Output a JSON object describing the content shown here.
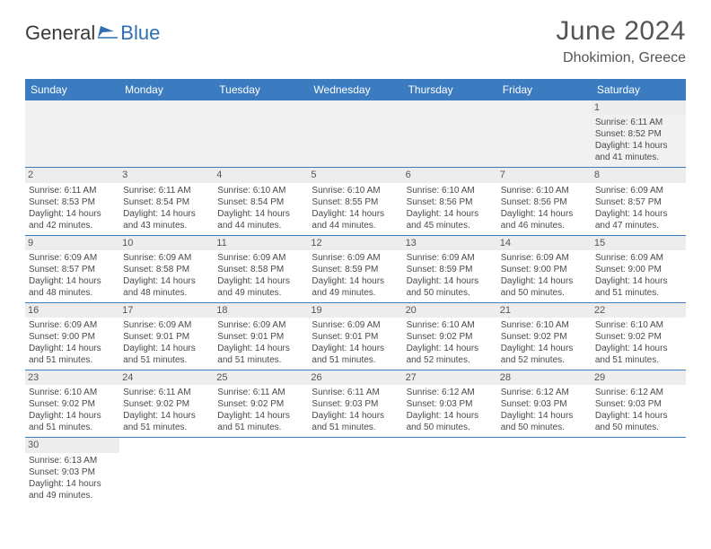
{
  "brand": {
    "part1": "General",
    "part2": "Blue"
  },
  "title": "June 2024",
  "location": "Dhokimion, Greece",
  "colors": {
    "header_bg": "#3b7cc0",
    "header_text": "#ffffff",
    "daynum_bg": "#ededed",
    "rule": "#3b7cc0",
    "text": "#4a4a4a",
    "brand_blue": "#2f6fb0"
  },
  "weekdays": [
    "Sunday",
    "Monday",
    "Tuesday",
    "Wednesday",
    "Thursday",
    "Friday",
    "Saturday"
  ],
  "weeks": [
    [
      null,
      null,
      null,
      null,
      null,
      null,
      {
        "n": "1",
        "sr": "Sunrise: 6:11 AM",
        "ss": "Sunset: 8:52 PM",
        "d1": "Daylight: 14 hours",
        "d2": "and 41 minutes."
      }
    ],
    [
      {
        "n": "2",
        "sr": "Sunrise: 6:11 AM",
        "ss": "Sunset: 8:53 PM",
        "d1": "Daylight: 14 hours",
        "d2": "and 42 minutes."
      },
      {
        "n": "3",
        "sr": "Sunrise: 6:11 AM",
        "ss": "Sunset: 8:54 PM",
        "d1": "Daylight: 14 hours",
        "d2": "and 43 minutes."
      },
      {
        "n": "4",
        "sr": "Sunrise: 6:10 AM",
        "ss": "Sunset: 8:54 PM",
        "d1": "Daylight: 14 hours",
        "d2": "and 44 minutes."
      },
      {
        "n": "5",
        "sr": "Sunrise: 6:10 AM",
        "ss": "Sunset: 8:55 PM",
        "d1": "Daylight: 14 hours",
        "d2": "and 44 minutes."
      },
      {
        "n": "6",
        "sr": "Sunrise: 6:10 AM",
        "ss": "Sunset: 8:56 PM",
        "d1": "Daylight: 14 hours",
        "d2": "and 45 minutes."
      },
      {
        "n": "7",
        "sr": "Sunrise: 6:10 AM",
        "ss": "Sunset: 8:56 PM",
        "d1": "Daylight: 14 hours",
        "d2": "and 46 minutes."
      },
      {
        "n": "8",
        "sr": "Sunrise: 6:09 AM",
        "ss": "Sunset: 8:57 PM",
        "d1": "Daylight: 14 hours",
        "d2": "and 47 minutes."
      }
    ],
    [
      {
        "n": "9",
        "sr": "Sunrise: 6:09 AM",
        "ss": "Sunset: 8:57 PM",
        "d1": "Daylight: 14 hours",
        "d2": "and 48 minutes."
      },
      {
        "n": "10",
        "sr": "Sunrise: 6:09 AM",
        "ss": "Sunset: 8:58 PM",
        "d1": "Daylight: 14 hours",
        "d2": "and 48 minutes."
      },
      {
        "n": "11",
        "sr": "Sunrise: 6:09 AM",
        "ss": "Sunset: 8:58 PM",
        "d1": "Daylight: 14 hours",
        "d2": "and 49 minutes."
      },
      {
        "n": "12",
        "sr": "Sunrise: 6:09 AM",
        "ss": "Sunset: 8:59 PM",
        "d1": "Daylight: 14 hours",
        "d2": "and 49 minutes."
      },
      {
        "n": "13",
        "sr": "Sunrise: 6:09 AM",
        "ss": "Sunset: 8:59 PM",
        "d1": "Daylight: 14 hours",
        "d2": "and 50 minutes."
      },
      {
        "n": "14",
        "sr": "Sunrise: 6:09 AM",
        "ss": "Sunset: 9:00 PM",
        "d1": "Daylight: 14 hours",
        "d2": "and 50 minutes."
      },
      {
        "n": "15",
        "sr": "Sunrise: 6:09 AM",
        "ss": "Sunset: 9:00 PM",
        "d1": "Daylight: 14 hours",
        "d2": "and 51 minutes."
      }
    ],
    [
      {
        "n": "16",
        "sr": "Sunrise: 6:09 AM",
        "ss": "Sunset: 9:00 PM",
        "d1": "Daylight: 14 hours",
        "d2": "and 51 minutes."
      },
      {
        "n": "17",
        "sr": "Sunrise: 6:09 AM",
        "ss": "Sunset: 9:01 PM",
        "d1": "Daylight: 14 hours",
        "d2": "and 51 minutes."
      },
      {
        "n": "18",
        "sr": "Sunrise: 6:09 AM",
        "ss": "Sunset: 9:01 PM",
        "d1": "Daylight: 14 hours",
        "d2": "and 51 minutes."
      },
      {
        "n": "19",
        "sr": "Sunrise: 6:09 AM",
        "ss": "Sunset: 9:01 PM",
        "d1": "Daylight: 14 hours",
        "d2": "and 51 minutes."
      },
      {
        "n": "20",
        "sr": "Sunrise: 6:10 AM",
        "ss": "Sunset: 9:02 PM",
        "d1": "Daylight: 14 hours",
        "d2": "and 52 minutes."
      },
      {
        "n": "21",
        "sr": "Sunrise: 6:10 AM",
        "ss": "Sunset: 9:02 PM",
        "d1": "Daylight: 14 hours",
        "d2": "and 52 minutes."
      },
      {
        "n": "22",
        "sr": "Sunrise: 6:10 AM",
        "ss": "Sunset: 9:02 PM",
        "d1": "Daylight: 14 hours",
        "d2": "and 51 minutes."
      }
    ],
    [
      {
        "n": "23",
        "sr": "Sunrise: 6:10 AM",
        "ss": "Sunset: 9:02 PM",
        "d1": "Daylight: 14 hours",
        "d2": "and 51 minutes."
      },
      {
        "n": "24",
        "sr": "Sunrise: 6:11 AM",
        "ss": "Sunset: 9:02 PM",
        "d1": "Daylight: 14 hours",
        "d2": "and 51 minutes."
      },
      {
        "n": "25",
        "sr": "Sunrise: 6:11 AM",
        "ss": "Sunset: 9:02 PM",
        "d1": "Daylight: 14 hours",
        "d2": "and 51 minutes."
      },
      {
        "n": "26",
        "sr": "Sunrise: 6:11 AM",
        "ss": "Sunset: 9:03 PM",
        "d1": "Daylight: 14 hours",
        "d2": "and 51 minutes."
      },
      {
        "n": "27",
        "sr": "Sunrise: 6:12 AM",
        "ss": "Sunset: 9:03 PM",
        "d1": "Daylight: 14 hours",
        "d2": "and 50 minutes."
      },
      {
        "n": "28",
        "sr": "Sunrise: 6:12 AM",
        "ss": "Sunset: 9:03 PM",
        "d1": "Daylight: 14 hours",
        "d2": "and 50 minutes."
      },
      {
        "n": "29",
        "sr": "Sunrise: 6:12 AM",
        "ss": "Sunset: 9:03 PM",
        "d1": "Daylight: 14 hours",
        "d2": "and 50 minutes."
      }
    ],
    [
      {
        "n": "30",
        "sr": "Sunrise: 6:13 AM",
        "ss": "Sunset: 9:03 PM",
        "d1": "Daylight: 14 hours",
        "d2": "and 49 minutes."
      },
      null,
      null,
      null,
      null,
      null,
      null
    ]
  ]
}
